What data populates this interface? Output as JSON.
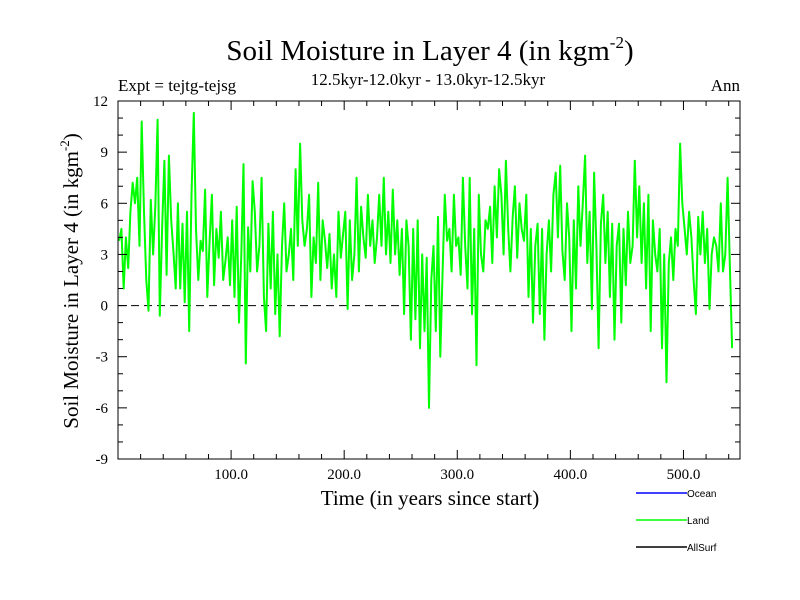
{
  "chart_data": {
    "type": "line",
    "title": "Soil Moisture in Layer 4 (in kgm",
    "title_superscript": "-2",
    "title_close": ")",
    "subtitle": "12.5kyr-12.0kyr - 13.0kyr-12.5kyr",
    "left_label": "Expt = tejtg-tejsg",
    "right_label": "Ann",
    "xlabel": "Time (in years since start)",
    "ylabel": "Soil Moisture in Layer 4 (in kgm",
    "ylabel_superscript": "-2",
    "ylabel_close": ")",
    "xlim": [
      0,
      550
    ],
    "ylim": [
      -9,
      12
    ],
    "x_ticks": [
      100,
      200,
      300,
      400,
      500
    ],
    "x_tick_labels": [
      "100.0",
      "200.0",
      "300.0",
      "400.0",
      "500.0"
    ],
    "y_ticks": [
      -9,
      -6,
      -3,
      0,
      3,
      6,
      9,
      12
    ],
    "y_tick_labels": [
      "-9",
      "-6",
      "-3",
      "0",
      "3",
      "6",
      "9",
      "12"
    ],
    "zero_line": true,
    "legend_position": "bottom-right",
    "legend": [
      {
        "name": "Ocean",
        "color": "#0000ff"
      },
      {
        "name": "Land",
        "color": "#00ff00"
      },
      {
        "name": "AllSurf",
        "color": "#000000"
      }
    ],
    "series": [
      {
        "name": "Land",
        "color": "#00ff00",
        "x_start": 1,
        "x_step": 2,
        "values": [
          3.8,
          4.5,
          1.0,
          4.0,
          2.2,
          5.5,
          7.2,
          6.0,
          7.5,
          3.5,
          10.8,
          5.5,
          1.5,
          -0.3,
          6.2,
          3.0,
          5.8,
          10.9,
          -0.6,
          4.5,
          8.5,
          1.8,
          8.8,
          5.0,
          3.2,
          1.0,
          6.0,
          1.0,
          4.8,
          0.2,
          5.5,
          -1.5,
          6.5,
          11.3,
          4.5,
          1.5,
          3.8,
          3.2,
          6.8,
          0.5,
          3.8,
          6.5,
          1.2,
          4.5,
          2.8,
          5.5,
          1.5,
          2.6,
          4.0,
          1.2,
          5.0,
          0.5,
          5.8,
          -1.0,
          3.0,
          8.3,
          -3.4,
          4.6,
          2.0,
          7.3,
          5.5,
          2.0,
          3.5,
          7.5,
          0.5,
          -1.5,
          4.8,
          1.0,
          5.5,
          -0.5,
          3.0,
          -1.8,
          3.5,
          6.0,
          2.0,
          3.0,
          4.5,
          1.5,
          8.0,
          3.5,
          9.5,
          5.0,
          3.5,
          4.5,
          6.5,
          0.5,
          4.0,
          2.5,
          7.2,
          1.5,
          5.0,
          3.8,
          2.2,
          4.2,
          1.0,
          3.0,
          0.5,
          5.5,
          2.8,
          4.2,
          5.5,
          -0.2,
          5.0,
          1.5,
          3.0,
          7.5,
          2.0,
          5.8,
          4.0,
          2.8,
          6.5,
          3.5,
          5.0,
          2.5,
          4.0,
          6.5,
          3.5,
          7.5,
          3.0,
          5.5,
          2.5,
          6.8,
          3.0,
          5.0,
          1.8,
          4.5,
          -0.5,
          5.0,
          3.5,
          -2.0,
          4.5,
          -0.8,
          5.0,
          -2.5,
          3.0,
          -1.5,
          2.8,
          -6.0,
          1.5,
          3.5,
          -1.5,
          5.2,
          -3.0,
          2.0,
          6.5,
          3.8,
          4.5,
          2.0,
          6.5,
          3.5,
          4.0,
          1.8,
          7.5,
          3.5,
          1.0,
          7.5,
          -0.5,
          4.5,
          -3.5,
          6.5,
          3.0,
          2.0,
          5.0,
          4.5,
          5.8,
          2.5,
          7.0,
          4.0,
          8.0,
          6.5,
          3.0,
          8.5,
          4.5,
          2.0,
          5.2,
          7.0,
          2.8,
          6.0,
          4.5,
          3.8,
          6.5,
          0.5,
          4.5,
          -1.0,
          3.5,
          4.8,
          -0.5,
          4.5,
          -2.0,
          3.0,
          5.0,
          2.0,
          6.5,
          7.8,
          4.0,
          8.2,
          3.2,
          1.5,
          6.0,
          4.0,
          -1.5,
          5.0,
          1.0,
          7.0,
          3.5,
          6.0,
          8.8,
          2.5,
          5.5,
          -0.2,
          7.8,
          3.5,
          -2.5,
          4.8,
          6.5,
          2.5,
          5.5,
          0.5,
          4.8,
          -2.0,
          3.5,
          4.8,
          -1.0,
          4.5,
          1.2,
          5.5,
          2.5,
          3.5,
          8.5,
          4.0,
          7.0,
          2.5,
          6.0,
          1.0,
          6.5,
          -1.5,
          5.0,
          3.0,
          2.0,
          4.5,
          -2.5,
          3.0,
          -4.5,
          2.5,
          4.0,
          1.5,
          4.5,
          3.5,
          9.5,
          6.0,
          4.5,
          3.0,
          5.5,
          4.0,
          1.5,
          -0.5,
          5.2,
          3.0,
          5.5,
          2.5,
          4.5,
          -0.2,
          3.0,
          4.0,
          3.5,
          2.0,
          6.0,
          2.0,
          3.0,
          7.5,
          2.5,
          -2.5
        ]
      }
    ]
  }
}
